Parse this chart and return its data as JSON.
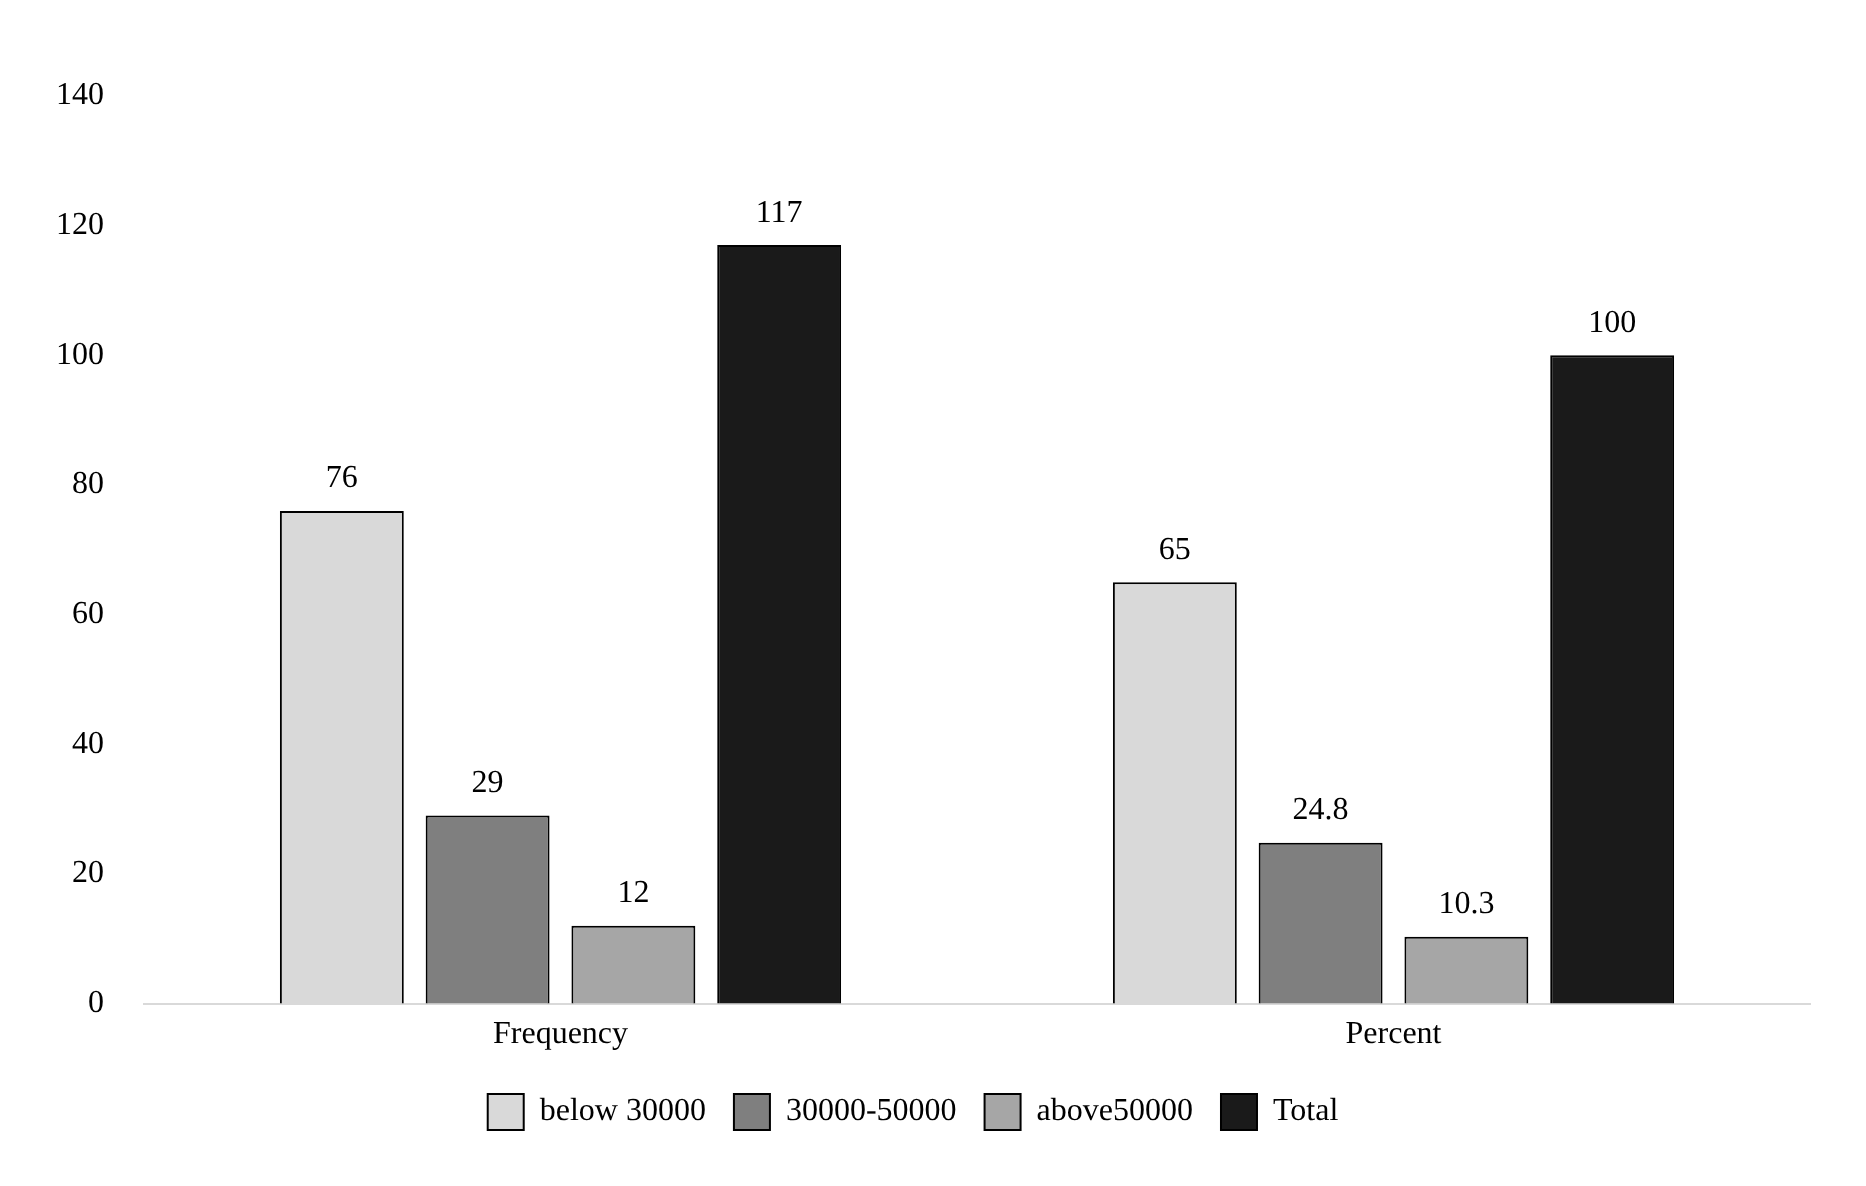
{
  "chart_data": {
    "type": "bar",
    "categories": [
      "Frequency",
      "Percent"
    ],
    "series": [
      {
        "name": "below 30000",
        "color": "#d9d9d9",
        "values": [
          76,
          65
        ]
      },
      {
        "name": "30000-50000",
        "color": "#7f7f7f",
        "values": [
          29,
          24.8
        ]
      },
      {
        "name": "above50000",
        "color": "#a6a6a6",
        "values": [
          12,
          10.3
        ]
      },
      {
        "name": "Total",
        "color": "#1a1a1a",
        "values": [
          117,
          100
        ]
      }
    ],
    "ylim": [
      0,
      140
    ],
    "yticks": [
      0,
      20,
      40,
      60,
      80,
      100,
      120,
      140
    ],
    "grid": false,
    "legend": "bottom",
    "data_labels": true
  }
}
